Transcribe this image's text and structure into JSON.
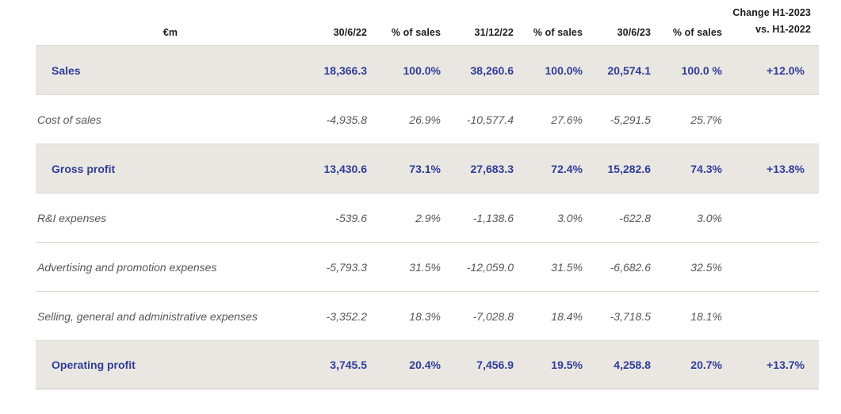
{
  "table": {
    "unit_label": "€m",
    "columns": [
      "30/6/22",
      "% of sales",
      "31/12/22",
      "% of sales",
      "30/6/23",
      "% of sales"
    ],
    "change_header": {
      "line1": "Change H1-2023",
      "line2": "vs. H1-2022"
    },
    "rows": [
      {
        "label": "Sales",
        "highlight": true,
        "values": [
          "18,366.3",
          "100.0%",
          "38,260.6",
          "100.0%",
          "20,574.1",
          "100.0 %"
        ],
        "change": "+12.0%"
      },
      {
        "label": "Cost of sales",
        "highlight": false,
        "values": [
          "-4,935.8",
          "26.9%",
          "-10,577.4",
          "27.6%",
          "-5,291.5",
          "25.7%"
        ],
        "change": ""
      },
      {
        "label": "Gross profit",
        "highlight": true,
        "values": [
          "13,430.6",
          "73.1%",
          "27,683.3",
          "72.4%",
          "15,282.6",
          "74.3%"
        ],
        "change": "+13.8%"
      },
      {
        "label": "R&I expenses",
        "highlight": false,
        "values": [
          "-539.6",
          "2.9%",
          "-1,138.6",
          "3.0%",
          "-622.8",
          "3.0%"
        ],
        "change": ""
      },
      {
        "label": "Advertising and promotion expenses",
        "highlight": false,
        "values": [
          "-5,793.3",
          "31.5%",
          "-12,059.0",
          "31.5%",
          "-6,682.6",
          "32.5%"
        ],
        "change": ""
      },
      {
        "label": "Selling, general and administrative expenses",
        "highlight": false,
        "values": [
          "-3,352.2",
          "18.3%",
          "-7,028.8",
          "18.4%",
          "-3,718.5",
          "18.1%"
        ],
        "change": ""
      },
      {
        "label": "Operating profit",
        "highlight": true,
        "values": [
          "3,745.5",
          "20.4%",
          "7,456.9",
          "19.5%",
          "4,258.8",
          "20.7%"
        ],
        "change": "+13.7%"
      }
    ],
    "colors": {
      "highlight_bg": "#eae7e2",
      "highlight_text": "#2e3d98",
      "regular_text": "#57575b",
      "header_text": "#1b1b1d",
      "divider": "#dbd8d3"
    }
  }
}
